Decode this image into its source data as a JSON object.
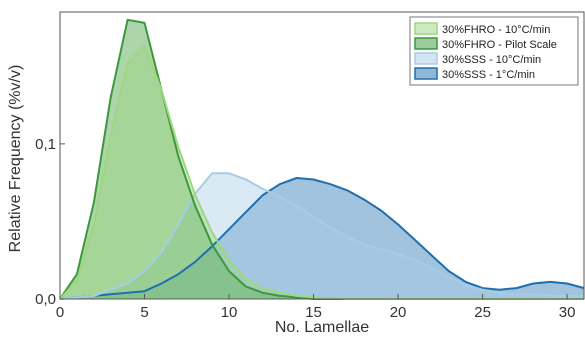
{
  "chart_data": {
    "type": "area",
    "xlabel": "No. Lamellae",
    "ylabel": "Relative Frequency (%v/v)",
    "xlim": [
      0,
      31
    ],
    "ylim": [
      0,
      0.185
    ],
    "x_ticks": [
      0,
      5,
      10,
      15,
      20,
      25,
      30
    ],
    "x_tick_labels": [
      "0",
      "5",
      "10",
      "15",
      "20",
      "25",
      "30"
    ],
    "y_ticks": [
      0,
      0.1
    ],
    "y_tick_labels": [
      "0,0",
      "0,1"
    ],
    "grid": false,
    "legend_position": "top-right",
    "series": [
      {
        "name": "30%FHRO - 10°C/min",
        "color": "#9ed77f",
        "x": [
          0,
          1,
          2,
          3,
          4,
          5,
          6,
          7,
          8,
          9,
          10,
          11,
          12,
          13,
          14,
          15,
          17,
          20,
          25,
          31
        ],
        "y": [
          0,
          0.012,
          0.048,
          0.105,
          0.152,
          0.163,
          0.135,
          0.098,
          0.067,
          0.043,
          0.025,
          0.013,
          0.007,
          0.004,
          0.002,
          0.001,
          0,
          0,
          0,
          0
        ]
      },
      {
        "name": "30%FHRO - Pilot Scale",
        "color": "#3a9a3a",
        "x": [
          0,
          1,
          2,
          3,
          4,
          5,
          6,
          7,
          8,
          9,
          10,
          11,
          12,
          13,
          14,
          15,
          17,
          20,
          25,
          31
        ],
        "y": [
          0,
          0.016,
          0.062,
          0.13,
          0.18,
          0.178,
          0.135,
          0.092,
          0.06,
          0.035,
          0.018,
          0.008,
          0.004,
          0.002,
          0.001,
          0,
          0,
          0,
          0,
          0
        ]
      },
      {
        "name": "30%SSS - 10°C/min",
        "color": "#a8cce6",
        "x": [
          0,
          2,
          4,
          5,
          6,
          7,
          8,
          9,
          10,
          11,
          12,
          13,
          14,
          15,
          16,
          17,
          18,
          19,
          20,
          21,
          22,
          23,
          24,
          25,
          26,
          27,
          28,
          29,
          30,
          31
        ],
        "y": [
          0,
          0.002,
          0.01,
          0.018,
          0.03,
          0.048,
          0.068,
          0.081,
          0.081,
          0.077,
          0.071,
          0.066,
          0.06,
          0.053,
          0.046,
          0.04,
          0.035,
          0.032,
          0.029,
          0.025,
          0.02,
          0.014,
          0.009,
          0.006,
          0.004,
          0.003,
          0.003,
          0.002,
          0.002,
          0.002
        ]
      },
      {
        "name": "30%SSS - 1°C/min",
        "color": "#1f6fae",
        "x": [
          0,
          1,
          2,
          3,
          4,
          5,
          6,
          7,
          8,
          9,
          10,
          11,
          12,
          13,
          14,
          15,
          16,
          17,
          18,
          19,
          20,
          21,
          22,
          23,
          24,
          25,
          26,
          27,
          28,
          29,
          30,
          31
        ],
        "y": [
          0,
          0.001,
          0.002,
          0.003,
          0.004,
          0.005,
          0.01,
          0.016,
          0.024,
          0.034,
          0.045,
          0.056,
          0.067,
          0.074,
          0.078,
          0.077,
          0.074,
          0.07,
          0.064,
          0.057,
          0.048,
          0.038,
          0.028,
          0.018,
          0.011,
          0.007,
          0.006,
          0.007,
          0.01,
          0.011,
          0.01,
          0.007
        ]
      }
    ]
  }
}
